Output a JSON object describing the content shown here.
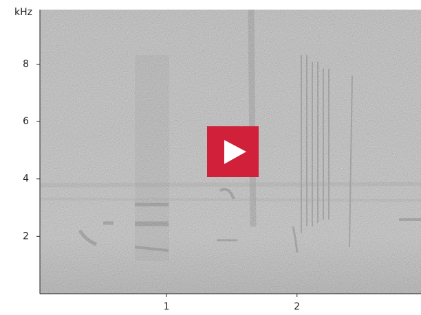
{
  "chart_data": {
    "type": "spectrogram",
    "y_unit": "kHz",
    "xlim": [
      0.03,
      2.95
    ],
    "xticks": [
      1,
      2
    ],
    "ylim": [
      0,
      9.9
    ],
    "yticks": [
      2,
      4,
      6,
      8
    ]
  }
}
